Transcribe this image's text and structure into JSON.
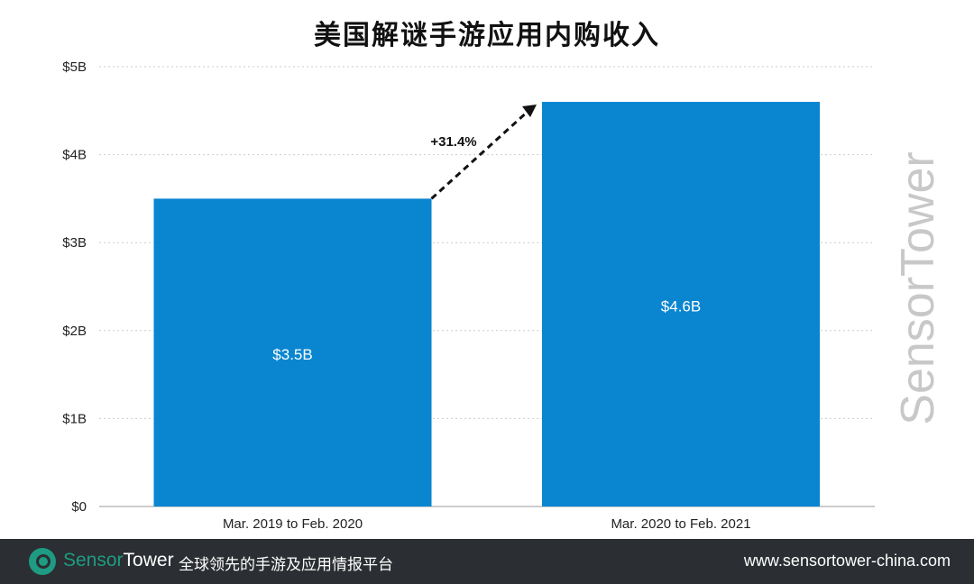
{
  "chart_data": {
    "type": "bar",
    "title": "美国解谜手游应用内购收入",
    "categories": [
      "Mar. 2019 to Feb. 2020",
      "Mar. 2020 to Feb. 2021"
    ],
    "values": [
      3.5,
      4.6
    ],
    "data_labels": [
      "$3.5B",
      "$4.6B"
    ],
    "ylim": [
      0,
      5
    ],
    "yticks": [
      0,
      1,
      2,
      3,
      4,
      5
    ],
    "ytick_labels": [
      "$0",
      "$1B",
      "$2B",
      "$3B",
      "$4B",
      "$5B"
    ],
    "xlabel": "",
    "ylabel": "",
    "grid": true,
    "bar_color": "#0a86d0",
    "annotation": "+31.4%"
  },
  "watermark": "SensorTower",
  "footer": {
    "brand_a": "Sensor",
    "brand_b": "Tower",
    "slogan": "全球领先的手游及应用情报平台",
    "url": "www.sensortower-china.com",
    "brand_color": "#1e9b82"
  }
}
